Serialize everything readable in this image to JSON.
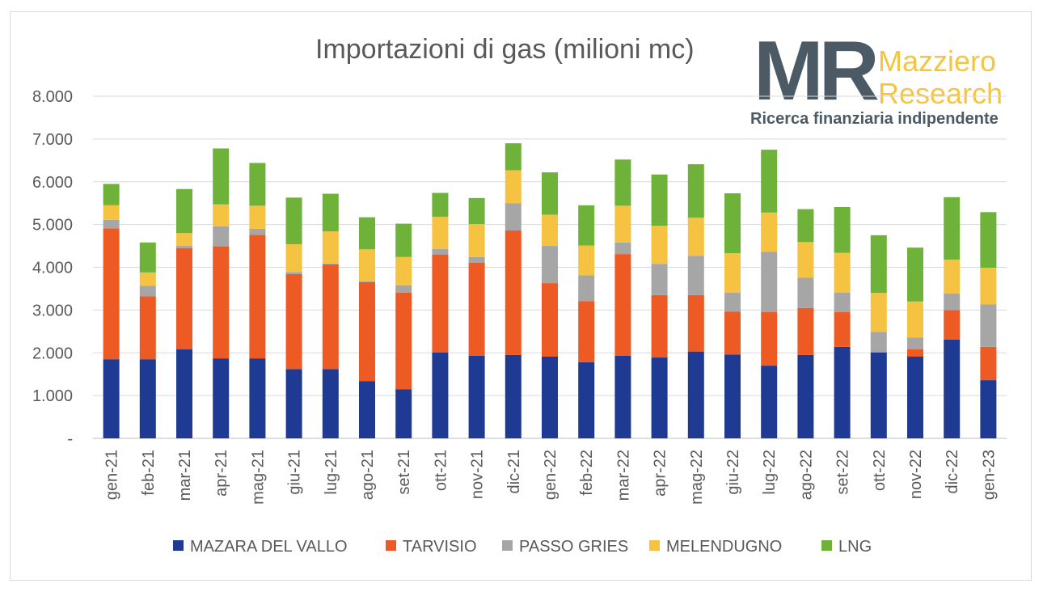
{
  "chart_data": {
    "type": "bar",
    "stacked": true,
    "title": "Importazioni di gas (milioni mc)",
    "categories": [
      "gen-21",
      "feb-21",
      "mar-21",
      "apr-21",
      "mag-21",
      "giu-21",
      "lug-21",
      "ago-21",
      "set-21",
      "ott-21",
      "nov-21",
      "dic-21",
      "gen-22",
      "feb-22",
      "mar-22",
      "apr-22",
      "mag-22",
      "giu-22",
      "lug-22",
      "ago-22",
      "set-22",
      "ott-22",
      "nov-22",
      "dic-22",
      "gen-23"
    ],
    "series": [
      {
        "name": "MAZARA DEL VALLO",
        "color": "#1f3a93",
        "values": [
          1850,
          1850,
          2080,
          1870,
          1870,
          1620,
          1620,
          1340,
          1150,
          2010,
          1930,
          1950,
          1910,
          1780,
          1930,
          1890,
          2030,
          1960,
          1700,
          1950,
          2140,
          2010,
          1910,
          2310,
          1360
        ]
      },
      {
        "name": "TARVISIO",
        "color": "#ee5a24",
        "values": [
          3060,
          1470,
          2370,
          2620,
          2890,
          2220,
          2450,
          2310,
          2260,
          2290,
          2180,
          2910,
          1720,
          1430,
          2380,
          1460,
          1320,
          1000,
          1250,
          1100,
          810,
          0,
          170,
          690,
          780
        ]
      },
      {
        "name": "PASSO GRIES",
        "color": "#a6a6a6",
        "values": [
          200,
          250,
          50,
          470,
          140,
          50,
          20,
          20,
          170,
          130,
          130,
          640,
          870,
          600,
          270,
          730,
          920,
          450,
          1410,
          710,
          460,
          480,
          280,
          390,
          990
        ]
      },
      {
        "name": "MELENDUGNO",
        "color": "#f5c242",
        "values": [
          340,
          310,
          300,
          510,
          540,
          650,
          750,
          750,
          660,
          750,
          770,
          770,
          730,
          700,
          860,
          890,
          890,
          920,
          920,
          830,
          930,
          910,
          840,
          790,
          860
        ]
      },
      {
        "name": "LNG",
        "color": "#6fb23a",
        "values": [
          500,
          700,
          1030,
          1310,
          1000,
          1090,
          880,
          750,
          780,
          560,
          610,
          630,
          990,
          940,
          1080,
          1200,
          1250,
          1400,
          1470,
          770,
          1070,
          1350,
          1260,
          1460,
          1300
        ]
      }
    ],
    "ylim": [
      0,
      8000
    ],
    "yticks": [
      0,
      1000,
      2000,
      3000,
      4000,
      5000,
      6000,
      7000,
      8000
    ],
    "ytick_labels": [
      "-",
      "1.000",
      "2.000",
      "3.000",
      "4.000",
      "5.000",
      "6.000",
      "7.000",
      "8.000"
    ],
    "grid": true,
    "legend_position": "bottom"
  },
  "logo": {
    "mark": "MR",
    "name_line1": "Mazziero",
    "name_line2": "Research",
    "tagline": "Ricerca finanziaria indipendente"
  }
}
